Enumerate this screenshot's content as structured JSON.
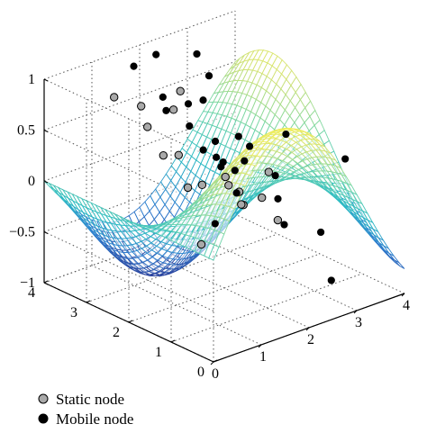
{
  "chart_data": {
    "type": "surface",
    "surface": {
      "function": "sin(x)*cos(y)",
      "x_range": [
        0,
        4
      ],
      "y_range": [
        0,
        4
      ],
      "colormap": [
        "#2b3e99",
        "#2f7fd0",
        "#2bbbc4",
        "#73d6a8",
        "#d2e277",
        "#f2ee5a"
      ]
    },
    "axes": {
      "x_ticks": [
        "0",
        "1",
        "2",
        "3",
        "4"
      ],
      "y_ticks": [
        "0",
        "1",
        "2",
        "3",
        "4"
      ],
      "z_ticks": [
        "−1",
        "−0.5",
        "0",
        "0.5",
        "1"
      ],
      "xlim": [
        0,
        4
      ],
      "ylim": [
        0,
        4
      ],
      "zlim": [
        -1,
        1
      ],
      "grid": true,
      "box": true
    },
    "static_nodes": [
      [
        0.1,
        0.4,
        0.06
      ],
      [
        0.35,
        1.0,
        0.46
      ],
      [
        0.6,
        1.5,
        0.64
      ],
      [
        0.9,
        2.2,
        0.45
      ],
      [
        1.1,
        2.8,
        0.58
      ],
      [
        1.5,
        3.4,
        0.6
      ],
      [
        1.2,
        3.7,
        0.68
      ],
      [
        1.7,
        2.7,
        0.85
      ],
      [
        2.0,
        3.2,
        0.52
      ],
      [
        2.2,
        2.2,
        0.02
      ],
      [
        2.4,
        2.0,
        -0.25
      ],
      [
        2.0,
        1.6,
        -0.1
      ],
      [
        2.6,
        3.2,
        -0.32
      ],
      [
        2.8,
        2.8,
        -0.28
      ],
      [
        2.5,
        1.3,
        -0.28
      ],
      [
        1.9,
        1.0,
        0.1
      ],
      [
        1.6,
        0.5,
        0.5
      ],
      [
        3.2,
        3.0,
        -0.45
      ]
    ],
    "mobile_nodes": [
      [
        0.3,
        0.3,
        0.25
      ],
      [
        0.6,
        0.5,
        0.72
      ],
      [
        1.2,
        0.5,
        0.82
      ],
      [
        1.0,
        0.9,
        0.62
      ],
      [
        1.5,
        1.1,
        0.75
      ],
      [
        1.3,
        1.4,
        0.52
      ],
      [
        1.8,
        1.3,
        0.42
      ],
      [
        1.9,
        2.1,
        0.44
      ],
      [
        1.6,
        2.4,
        0.8
      ],
      [
        2.0,
        2.5,
        0.75
      ],
      [
        2.3,
        2.7,
        0.9
      ],
      [
        2.4,
        3.1,
        1.02
      ],
      [
        1.9,
        3.5,
        1.02
      ],
      [
        1.7,
        3.8,
        0.88
      ],
      [
        1.6,
        3.0,
        0.75
      ],
      [
        2.2,
        3.6,
        0.4
      ],
      [
        2.6,
        3.5,
        0.2
      ],
      [
        2.8,
        3.4,
        -0.05
      ],
      [
        2.4,
        2.2,
        0.05
      ],
      [
        2.7,
        2.5,
        -0.28
      ],
      [
        2.9,
        1.6,
        -0.45
      ],
      [
        3.3,
        2.2,
        -0.38
      ],
      [
        3.6,
        2.6,
        -0.28
      ],
      [
        3.4,
        1.3,
        -0.55
      ],
      [
        4.0,
        2.8,
        0.02
      ],
      [
        4.0,
        1.4,
        0.05
      ],
      [
        3.0,
        0.6,
        -0.82
      ]
    ],
    "legend": [
      {
        "label": "Static node",
        "fill": "#a9a9a9"
      },
      {
        "label": "Mobile node",
        "fill": "#000000"
      }
    ],
    "legend_position": "bottom-left"
  }
}
